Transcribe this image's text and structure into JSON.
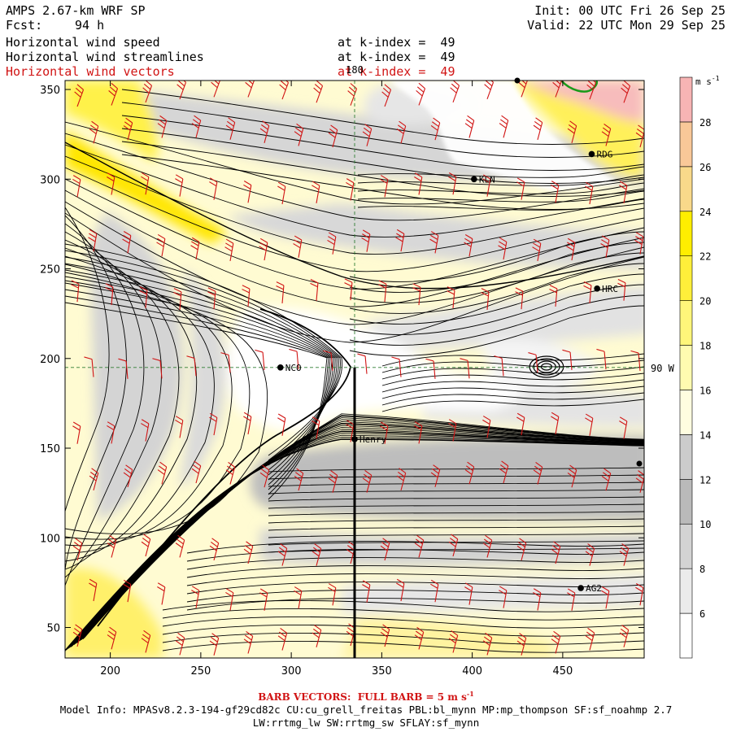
{
  "header": {
    "model": "AMPS 2.67-km WRF SP",
    "forecast_label": "Fcst:",
    "forecast_value": "94 h",
    "init": "Init: 00 UTC Fri 26 Sep 25",
    "valid": "Valid: 22 UTC Mon 29 Sep 25",
    "fields": [
      {
        "name": "Horizontal wind speed",
        "level": "at k-index =  49"
      },
      {
        "name": "Horizontal wind streamlines",
        "level": "at k-index =  49"
      },
      {
        "name": "Horizontal wind vectors",
        "level": "at k-index =  49"
      }
    ]
  },
  "colors": {
    "vector_red": "#d11414",
    "grid_green": "#2e7d32",
    "coast_green": "#1a9a1a"
  },
  "chart_data": {
    "type": "heatmap",
    "xlim": [
      175,
      495
    ],
    "ylim": [
      33,
      355
    ],
    "x_ticks": [
      200,
      250,
      300,
      350,
      400,
      450
    ],
    "y_ticks": [
      50,
      100,
      150,
      200,
      250,
      300,
      350
    ],
    "reference_lines": {
      "longitude_label": "180",
      "latitude_label": "90 W",
      "vertical_x": 335,
      "horizontal_y": 195
    },
    "colorbar": {
      "unit": "m s",
      "unit_exp": "-1",
      "levels": [
        6,
        8,
        10,
        12,
        14,
        16,
        18,
        20,
        22,
        24,
        26,
        28
      ],
      "colors": [
        "#ffffff",
        "#ebebeb",
        "#d3d3d3",
        "#bababa",
        "#cccccc",
        "#fffde0",
        "#fffbb0",
        "#fff67a",
        "#ffef3a",
        "#ffee00",
        "#f9d98a",
        "#f9c898",
        "#f7b4b4"
      ]
    },
    "stations": [
      {
        "name": "KLN",
        "x": 401,
        "y": 300
      },
      {
        "name": "RDG",
        "x": 466,
        "y": 314
      },
      {
        "name": "HRC",
        "x": 469,
        "y": 239
      },
      {
        "name": "NCO",
        "x": 294,
        "y": 195
      },
      {
        "name": "Henry",
        "x": 335,
        "y": 155
      },
      {
        "name": "AG2",
        "x": 460,
        "y": 72
      }
    ],
    "barb_note": "BARB VECTORS:  FULL BARB = 5 m s",
    "barb_note_exp": "-1"
  },
  "footer": {
    "model_info": "Model Info: MPASv8.2.3-194-gf29cd82c CU:cu_grell_freitas PBL:bl_mynn MP:mp_thompson SF:sf_noahmp 2.7",
    "schemes": "LW:rrtmg_lw SW:rrtmg_sw SFLAY:sf_mynn"
  }
}
